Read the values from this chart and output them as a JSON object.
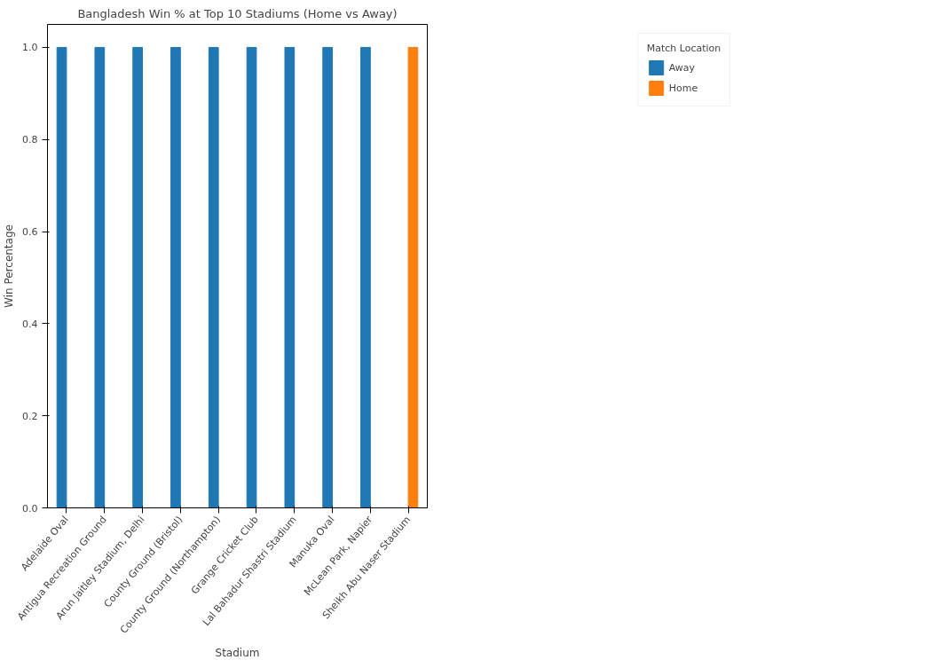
{
  "chart_data": {
    "type": "bar",
    "title": "Bangladesh Win % at Top 10 Stadiums (Home vs Away)",
    "xlabel": "Stadium",
    "ylabel": "Win Percentage",
    "legend_title": "Match Location",
    "categories": [
      "Adelaide Oval",
      "Antigua Recreation Ground",
      "Arun Jaitley Stadium, Delhi",
      "County Ground (Bristol)",
      "County Ground (Northampton)",
      "Grange Cricket Club",
      "Lal Bahadur Shastri Stadium",
      "Manuka Oval",
      "McLean Park, Napier",
      "Sheikh Abu Naser Stadium"
    ],
    "series": [
      {
        "name": "Away",
        "color": "#1f77b4",
        "values": [
          1.0,
          1.0,
          1.0,
          1.0,
          1.0,
          1.0,
          1.0,
          1.0,
          1.0,
          null
        ]
      },
      {
        "name": "Home",
        "color": "#ff7f0e",
        "values": [
          null,
          null,
          null,
          null,
          null,
          null,
          null,
          null,
          null,
          1.0
        ]
      }
    ],
    "ylim": [
      0,
      1.05
    ],
    "yticks": [
      {
        "value": 0,
        "label": "0.0"
      },
      {
        "value": 0.2,
        "label": "0.2"
      },
      {
        "value": 0.4,
        "label": "0.4"
      },
      {
        "value": 0.6,
        "label": "0.6"
      },
      {
        "value": 0.8,
        "label": "0.8"
      },
      {
        "value": 1.0,
        "label": "1.0"
      }
    ],
    "legend": "top right"
  }
}
